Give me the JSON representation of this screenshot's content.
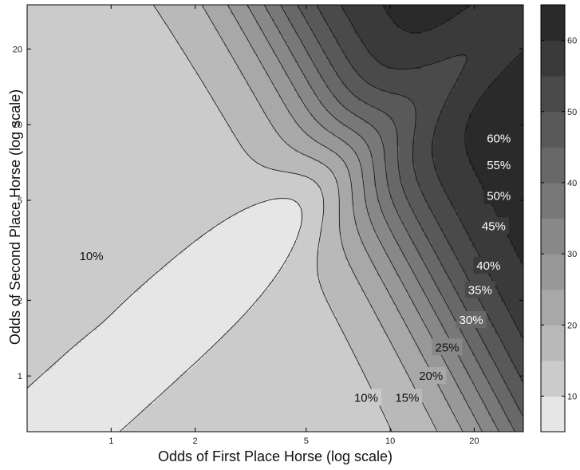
{
  "chart_data": {
    "type": "contour",
    "xlabel": "Odds of First Place Horse (log scale)",
    "ylabel": "Odds of Second Place Horse (log scale)",
    "x_scale": "log",
    "y_scale": "log",
    "xlim": [
      0.5,
      30
    ],
    "ylim": [
      0.6,
      30
    ],
    "x_ticks": [
      1,
      2,
      5,
      10,
      20
    ],
    "y_ticks": [
      1,
      2,
      5,
      10,
      20
    ],
    "levels": [
      5,
      10,
      15,
      20,
      25,
      30,
      35,
      40,
      45,
      50,
      55,
      60,
      65
    ],
    "level_fill_colors": [
      "#e6e6e6",
      "#cbcbcb",
      "#b9b9b9",
      "#a8a8a8",
      "#989898",
      "#888888",
      "#787878",
      "#686868",
      "#595959",
      "#4a4a4a",
      "#3a3a3a",
      "#2a2a2a",
      "#050505"
    ],
    "contour_labels": [
      {
        "text": "10%",
        "x": 0.85,
        "y": 3.0
      },
      {
        "text": "10%",
        "x": 8.2,
        "y": 0.82
      },
      {
        "text": "15%",
        "x": 11.5,
        "y": 0.82
      },
      {
        "text": "20%",
        "x": 14.0,
        "y": 1.0
      },
      {
        "text": "25%",
        "x": 16.0,
        "y": 1.3
      },
      {
        "text": "30%",
        "x": 19.5,
        "y": 1.67
      },
      {
        "text": "35%",
        "x": 21.0,
        "y": 2.2
      },
      {
        "text": "40%",
        "x": 22.5,
        "y": 2.75
      },
      {
        "text": "45%",
        "x": 23.5,
        "y": 3.95
      },
      {
        "text": "50%",
        "x": 24.5,
        "y": 5.2
      },
      {
        "text": "55%",
        "x": 24.5,
        "y": 6.9
      },
      {
        "text": "60%",
        "x": 24.5,
        "y": 8.8
      }
    ],
    "colorbar": {
      "range": [
        5,
        65
      ],
      "ticks": [
        10,
        20,
        30,
        40,
        50,
        60
      ]
    }
  }
}
